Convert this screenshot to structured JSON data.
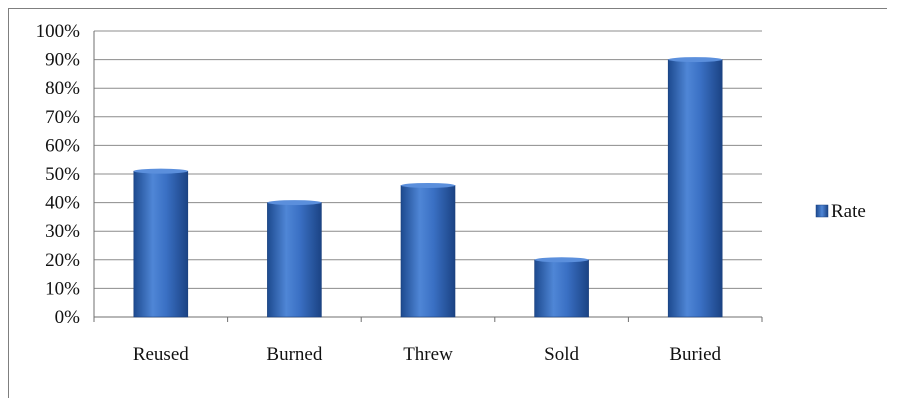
{
  "chart_data": {
    "type": "bar",
    "categories": [
      "Reused",
      "Burned",
      "Threw",
      "Sold",
      "Buried"
    ],
    "series": [
      {
        "name": "Rate",
        "values": [
          51,
          40,
          46,
          20,
          90
        ],
        "color": "#2f64b3"
      }
    ],
    "y_tick_labels": [
      "0%",
      "10%",
      "20%",
      "30%",
      "40%",
      "50%",
      "60%",
      "70%",
      "80%",
      "90%",
      "100%"
    ],
    "ylim": [
      0,
      100
    ],
    "y_unit": "%",
    "grid": true,
    "legend": {
      "position": "right",
      "label": "Rate"
    }
  }
}
